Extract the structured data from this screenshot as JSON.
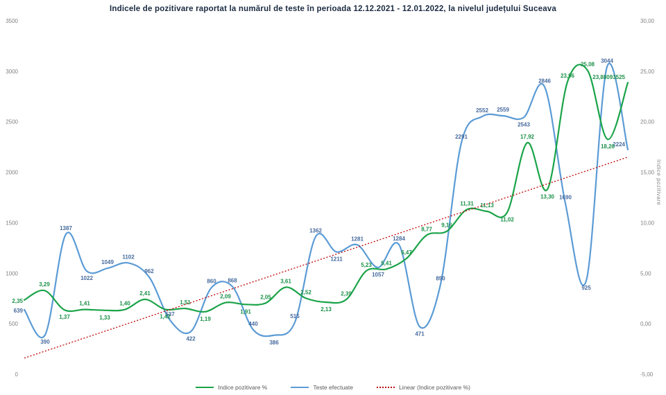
{
  "title": "Indicele de pozitivare raportat la numărul de teste în perioada 12.12.2021 - 12.01.2022, la nivelul județului Suceava",
  "colors": {
    "tests_line": "#5b9bd5",
    "tests_labels": "#44699d",
    "positivity_line": "#1aa348",
    "positivity_labels": "#1a9048",
    "trendline": "#c00000",
    "axis_text": "#808080",
    "title_text": "#1b2a41",
    "legend_text": "#595959",
    "background": "#ffffff"
  },
  "legend": {
    "items": [
      {
        "label": "Indice pozitivare %",
        "color": "#1aa348",
        "style": "solid"
      },
      {
        "label": "Teste efectuate",
        "color": "#5b9bd5",
        "style": "solid"
      },
      {
        "label": "Linear (Indice pozitivare %)",
        "color": "#c00000",
        "style": "dotted"
      }
    ]
  },
  "chart_data": {
    "type": "line",
    "title": "Indicele de pozitivare raportat la numărul de teste în perioada 12.12.2021 - 12.01.2022, la nivelul județului Suceava",
    "grid": "off",
    "legend_position": "bottom",
    "left_axis": {
      "min": 0,
      "max": 3500,
      "ticks": [
        "3500",
        "3000",
        "2500",
        "2000",
        "1500",
        "1000",
        "500",
        "0"
      ]
    },
    "right_axis": {
      "min": -5,
      "max": 30,
      "title": "Indice pozitivare",
      "ticks": [
        "30,00",
        "25,00",
        "20,00",
        "15,00",
        "10,00",
        "5,00",
        "0,00",
        "-5,00"
      ]
    },
    "series": [
      {
        "name": "Teste efectuate",
        "axis": "left",
        "color": "#5b9bd5",
        "label_color": "#44699d",
        "values": [
          639,
          390,
          1387,
          1022,
          1049,
          1102,
          962,
          537,
          422,
          860,
          868,
          440,
          386,
          515,
          1362,
          1211,
          1281,
          1057,
          1284,
          471,
          890,
          2291,
          2552,
          2559,
          2543,
          2846,
          1690,
          925,
          3044,
          2224
        ],
        "labels": [
          "639",
          "390",
          "1387",
          "1022",
          "1049",
          "1102",
          "962",
          "537",
          "422",
          "860",
          "868",
          "440",
          "386",
          "515",
          "1362",
          "1211",
          "1281",
          "1057",
          "1284",
          "471",
          "890",
          "2291",
          "2552",
          "2559",
          "2543",
          "2846",
          "1690",
          "925",
          "3044",
          "2224"
        ]
      },
      {
        "name": "Indice pozitivare %",
        "axis": "right",
        "color": "#1aa348",
        "label_color": "#1a9048",
        "values": [
          2.35,
          3.29,
          1.37,
          1.41,
          1.33,
          1.4,
          2.41,
          1.42,
          1.51,
          1.19,
          2.09,
          1.91,
          2.05,
          3.61,
          2.52,
          2.13,
          2.39,
          5.23,
          5.41,
          6.47,
          8.77,
          9.16,
          11.31,
          11.13,
          11.02,
          17.92,
          13.3,
          23.96,
          25.08,
          18.26,
          23.88093525
        ],
        "labels": [
          "2,35",
          "3,29",
          "1,37",
          "1,41",
          "1,33",
          "1,40",
          "2,41",
          "1,42",
          "1,51",
          "1,19",
          "2,09",
          "1,91",
          "2,05",
          "3,61",
          "2,52",
          "2,13",
          "2,39",
          "5,23",
          "5,41",
          "6,47",
          "8,77",
          "9,16",
          "11,31",
          "11,13",
          "11,02",
          "17,92",
          "13,30",
          "23,96",
          "25,08",
          "18,26",
          "23,88093525"
        ]
      }
    ],
    "trendline": {
      "name": "Linear (Indice pozitivare %)",
      "axis": "right",
      "color": "#c00000",
      "style": "dotted",
      "start_value": -3.4,
      "end_value": 16.5
    }
  }
}
